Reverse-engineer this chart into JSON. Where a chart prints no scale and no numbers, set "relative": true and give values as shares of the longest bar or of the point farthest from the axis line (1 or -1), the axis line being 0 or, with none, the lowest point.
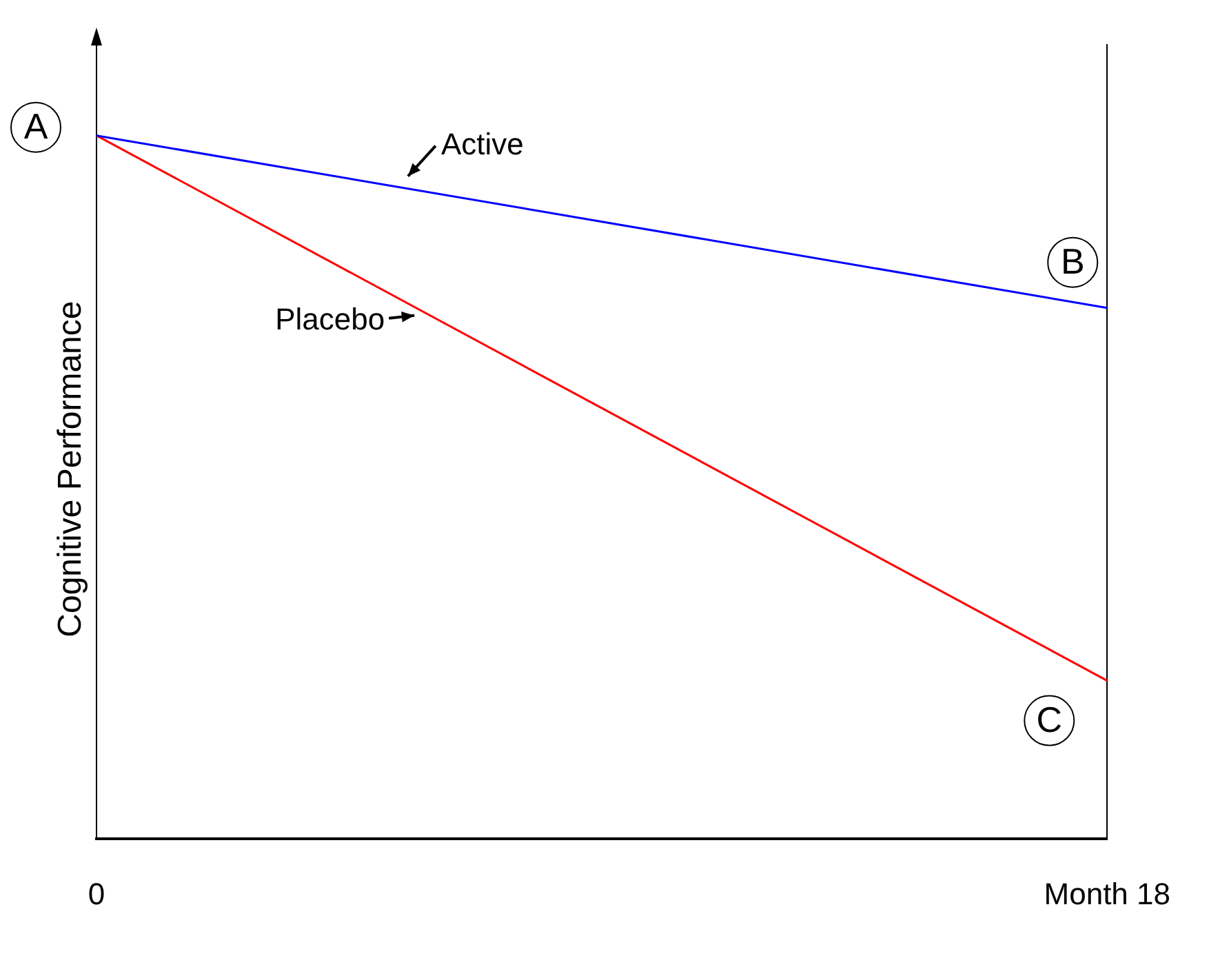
{
  "chart_data": {
    "type": "line",
    "ylabel": "Cognitive Performance",
    "categories": [
      "0",
      "Month 18"
    ],
    "relative": true,
    "legend": false,
    "grid": "x",
    "marker": "none",
    "line_style": "solid",
    "series": [
      {
        "name": "Active",
        "color": "#0000ff",
        "values": [
          1,
          0.755
        ]
      },
      {
        "name": "Placebo",
        "color": "#ff0000",
        "values": [
          1,
          0.225
        ]
      }
    ],
    "annotations": [
      {
        "text": "A",
        "x": "0",
        "y": 1
      },
      {
        "text": "B",
        "x": "Month 18",
        "y": 0.755
      },
      {
        "text": "C",
        "x": "Month 18",
        "y": 0.225
      }
    ]
  }
}
